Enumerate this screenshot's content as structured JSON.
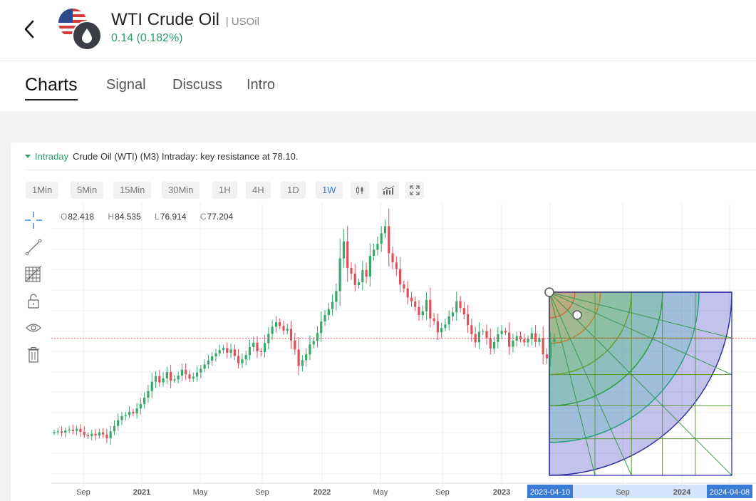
{
  "header": {
    "back_icon": "chevron-left-icon",
    "title": "WTI Crude Oil",
    "symbol": "| USOil",
    "change": "0.14 (0.182%)",
    "change_color": "#2e9e66"
  },
  "tabs": [
    {
      "label": "Charts",
      "active": true
    },
    {
      "label": "Signal",
      "active": false
    },
    {
      "label": "Discuss",
      "active": false
    },
    {
      "label": "Intro",
      "active": false
    }
  ],
  "analysis": {
    "tag": "Intraday",
    "text": "Crude Oil (WTI) (M3) Intraday: key resistance at 78.10."
  },
  "timeframes": [
    {
      "label": "1Min",
      "active": false
    },
    {
      "label": "5Min",
      "active": false
    },
    {
      "label": "15Min",
      "active": false
    },
    {
      "label": "30Min",
      "active": false
    },
    {
      "label": "1H",
      "active": false
    },
    {
      "label": "4H",
      "active": false
    },
    {
      "label": "1D",
      "active": false
    },
    {
      "label": "1W",
      "active": true
    }
  ],
  "chart_tools": [
    "candlestick-icon",
    "indicators-icon",
    "fullscreen-icon"
  ],
  "side_tools": [
    "crosshair-icon",
    "trend-line-icon",
    "fib-grid-icon",
    "unlock-icon",
    "eye-icon",
    "trash-icon"
  ],
  "ohlc": {
    "o_label": "O",
    "o": "82.418",
    "h_label": "H",
    "h": "84.535",
    "l_label": "L",
    "l": "76.914",
    "c_label": "C",
    "c": "77.204"
  },
  "chart_data": {
    "type": "candlestick",
    "interval": "1W",
    "up_color": "#3aa86b",
    "down_color": "#e0505a",
    "price_line": 77.2,
    "x_ticks": [
      "Sep",
      "2021",
      "May",
      "Sep",
      "2022",
      "May",
      "Sep",
      "2023",
      "2023-04-10",
      "Sep",
      "2024",
      "2024-04-08"
    ],
    "highlighted_ticks": [
      "2023-04-10",
      "2024-04-08"
    ],
    "gann_box": {
      "start": "2023-04-10",
      "end": "2024-04-08"
    },
    "approx_close_series": [
      40.2,
      40.5,
      40.0,
      40.8,
      41.2,
      40.6,
      41.5,
      40.3,
      39.0,
      38.6,
      39.5,
      38.8,
      40.1,
      39.2,
      37.8,
      40.5,
      42.6,
      44.9,
      46.5,
      46.9,
      48.2,
      47.6,
      49.5,
      51.2,
      53.8,
      56.4,
      60.1,
      62.3,
      59.8,
      61.4,
      63.9,
      60.5,
      61.0,
      62.5,
      64.8,
      63.0,
      61.3,
      62.1,
      63.7,
      65.2,
      66.9,
      68.4,
      70.1,
      71.3,
      72.6,
      73.4,
      71.5,
      72.8,
      70.3,
      67.4,
      68.9,
      70.6,
      73.8,
      75.5,
      72.1,
      71.8,
      75.3,
      79.0,
      81.8,
      83.6,
      82.1,
      80.3,
      81.0,
      76.4,
      72.8,
      66.3,
      68.6,
      70.9,
      74.8,
      76.2,
      79.3,
      83.9,
      86.4,
      88.8,
      91.6,
      95.9,
      108.8,
      115.5,
      105.0,
      102.8,
      98.3,
      99.4,
      104.2,
      101.6,
      109.8,
      112.2,
      114.6,
      118.7,
      121.5,
      110.8,
      107.2,
      104.6,
      98.5,
      96.9,
      93.3,
      91.8,
      89.6,
      86.4,
      87.9,
      92.4,
      85.1,
      84.0,
      79.6,
      81.3,
      82.7,
      85.9,
      87.5,
      91.9,
      89.2,
      86.7,
      82.4,
      78.9,
      75.6,
      79.8,
      80.1,
      77.4,
      73.2,
      75.8,
      78.9,
      80.2,
      79.5,
      73.9,
      76.3,
      78.1,
      76.8,
      75.6,
      76.9,
      79.2,
      75.8,
      77.4,
      70.9,
      69.3,
      75.7,
      77.2
    ]
  }
}
